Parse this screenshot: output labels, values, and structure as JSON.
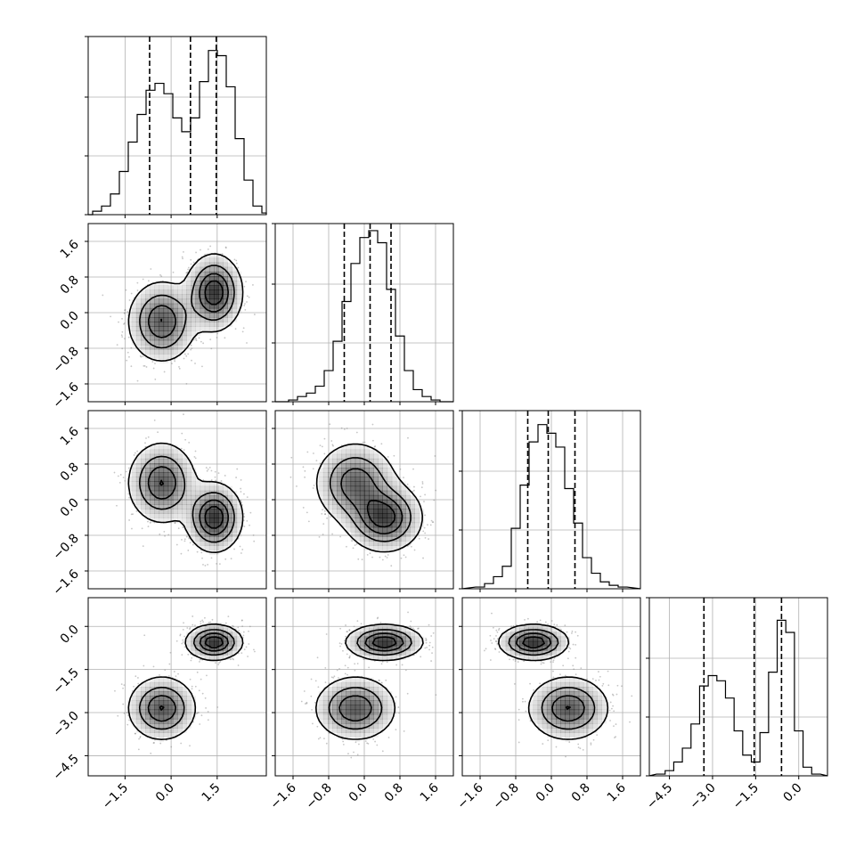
{
  "chart_data": {
    "type": "corner",
    "title": "",
    "n_params": 4,
    "params": [
      {
        "label": "",
        "range": [
          -2.7,
          3.1
        ],
        "ticks": [
          -1.5,
          0.0,
          1.5
        ],
        "tick_labels": [
          "−1.5",
          "0.0",
          "1.5"
        ],
        "quantiles": [
          -0.7,
          0.63,
          1.47
        ]
      },
      {
        "label": "",
        "range": [
          -2.0,
          2.0
        ],
        "ticks": [
          -1.6,
          -0.8,
          0.0,
          0.8,
          1.6
        ],
        "tick_labels": [
          "−1.6",
          "−0.8",
          "0.0",
          "0.8",
          "1.6"
        ],
        "quantiles": [
          -0.45,
          0.13,
          0.6
        ]
      },
      {
        "label": "",
        "range": [
          -2.0,
          2.0
        ],
        "ticks": [
          -1.6,
          -0.8,
          0.0,
          0.8,
          1.6
        ],
        "tick_labels": [
          "−1.6",
          "−0.8",
          "0.0",
          "0.8",
          "1.6"
        ],
        "quantiles": [
          -0.53,
          -0.07,
          0.53
        ]
      },
      {
        "label": "",
        "range": [
          -5.2,
          1.0
        ],
        "ticks": [
          -4.5,
          -3.0,
          -1.5,
          0.0
        ],
        "tick_labels": [
          "−4.5",
          "−3.0",
          "−1.5",
          "0.0"
        ],
        "quantiles": [
          -3.3,
          -1.55,
          -0.6
        ]
      }
    ],
    "histograms": [
      {
        "param": 0,
        "bin_width": 0.29,
        "counts": [
          0.0,
          0.02,
          0.05,
          0.12,
          0.25,
          0.42,
          0.58,
          0.72,
          0.76,
          0.7,
          0.56,
          0.48,
          0.56,
          0.77,
          0.95,
          0.92,
          0.74,
          0.44,
          0.2,
          0.05,
          0.01
        ]
      },
      {
        "param": 1,
        "bin_width": 0.2,
        "counts": [
          0.0,
          0.01,
          0.03,
          0.05,
          0.09,
          0.18,
          0.35,
          0.58,
          0.8,
          0.95,
          0.99,
          0.92,
          0.65,
          0.38,
          0.18,
          0.07,
          0.03,
          0.01,
          0.0
        ]
      },
      {
        "param": 2,
        "bin_width": 0.2,
        "counts": [
          0.01,
          0.03,
          0.07,
          0.13,
          0.35,
          0.6,
          0.85,
          0.95,
          0.9,
          0.82,
          0.58,
          0.38,
          0.18,
          0.09,
          0.04,
          0.02,
          0.01
        ]
      },
      {
        "param": 3,
        "bin_width": 0.3,
        "counts": [
          0.01,
          0.03,
          0.08,
          0.16,
          0.3,
          0.52,
          0.58,
          0.55,
          0.45,
          0.26,
          0.12,
          0.08,
          0.25,
          0.6,
          0.9,
          0.83,
          0.26,
          0.05,
          0.01
        ]
      }
    ],
    "pairs": [
      {
        "x": 1,
        "y": 0
      },
      {
        "x": 2,
        "y": 0
      },
      {
        "x": 2,
        "y": 1
      },
      {
        "x": 3,
        "y": 0
      },
      {
        "x": 3,
        "y": 1
      },
      {
        "x": 3,
        "y": 2
      }
    ],
    "modes": [
      {
        "weight": 0.55,
        "mean": [
          1.4,
          0.45,
          -0.4,
          -0.55
        ],
        "sd": [
          0.45,
          0.42,
          0.38,
          0.3
        ]
      },
      {
        "weight": 0.45,
        "mean": [
          -0.3,
          -0.2,
          0.38,
          -2.85
        ],
        "sd": [
          0.55,
          0.45,
          0.45,
          0.55
        ]
      }
    ],
    "contour_levels": [
      0.12,
      0.35,
      0.6,
      0.82
    ],
    "grid": true,
    "legend": "none",
    "colors": {
      "line": "#000000",
      "density": "#000000",
      "points": "#808080",
      "grid": "#b0b0b0"
    }
  }
}
